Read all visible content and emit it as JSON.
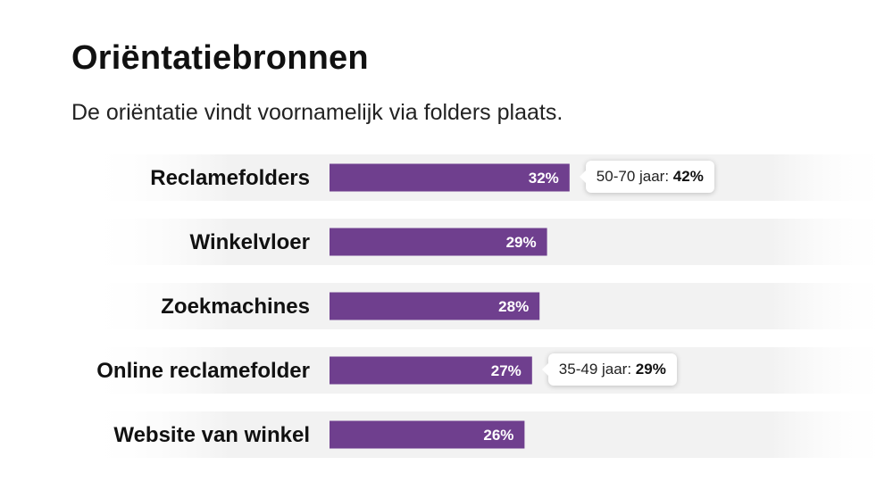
{
  "header": {
    "title": "Oriëntatiebronnen",
    "subtitle": "De oriëntatie vindt voornamelijk via folders plaats."
  },
  "chart_data": {
    "type": "bar",
    "orientation": "horizontal",
    "title": "Oriëntatiebronnen",
    "subtitle": "De oriëntatie vindt voornamelijk via folders plaats.",
    "categories": [
      "Reclamefolders",
      "Winkelvloer",
      "Zoekmachines",
      "Online reclamefolder",
      "Website van winkel"
    ],
    "values": [
      32,
      29,
      28,
      27,
      26
    ],
    "value_labels": [
      "32%",
      "29%",
      "28%",
      "27%",
      "26%"
    ],
    "unit": "%",
    "xlim": [
      0,
      50
    ],
    "grid": false,
    "legend": "none",
    "bar_color": "#6f3f8e",
    "track_color": "#f2f2f2",
    "annotations": [
      {
        "category_index": 0,
        "label": "50-70 jaar: ",
        "value_text": "42%"
      },
      {
        "category_index": 3,
        "label": "35-49 jaar: ",
        "value_text": "29%"
      }
    ]
  }
}
